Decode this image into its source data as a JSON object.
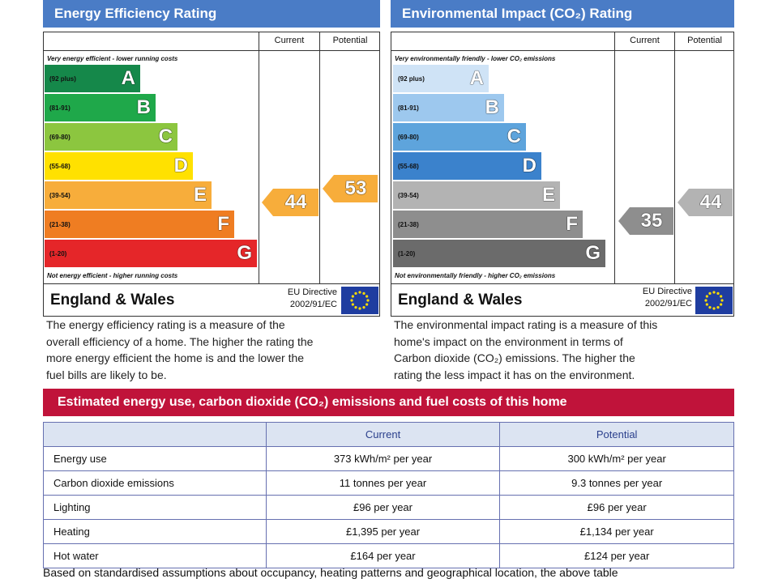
{
  "energy_panel": {
    "title": "Energy Efficiency Rating",
    "col_current": "Current",
    "col_potential": "Potential",
    "top_caption": "Very energy efficient - lower running costs",
    "bottom_caption": "Not energy efficient - higher running costs",
    "bands": [
      {
        "range": "(92 plus)",
        "letter": "A",
        "color": "#15884a"
      },
      {
        "range": "(81-91)",
        "letter": "B",
        "color": "#1fa84a"
      },
      {
        "range": "(69-80)",
        "letter": "C",
        "color": "#8cc63f"
      },
      {
        "range": "(55-68)",
        "letter": "D",
        "color": "#ffe100"
      },
      {
        "range": "(39-54)",
        "letter": "E",
        "color": "#f7ad3b"
      },
      {
        "range": "(21-38)",
        "letter": "F",
        "color": "#ef7d22"
      },
      {
        "range": "(1-20)",
        "letter": "G",
        "color": "#e52629"
      }
    ],
    "current": {
      "value": "44",
      "band": "E",
      "color": "#f7ad3b"
    },
    "potential": {
      "value": "53",
      "band": "E",
      "color": "#f7ad3b"
    },
    "region": "England & Wales",
    "directive_line1": "EU Directive",
    "directive_line2": "2002/91/EC",
    "description": [
      "The energy efficiency rating is a measure of the",
      "overall efficiency of a home. The higher the rating the",
      "more energy efficient the home is and the lower the",
      "fuel bills are likely to be."
    ]
  },
  "env_panel": {
    "title": "Environmental Impact (CO₂) Rating",
    "col_current": "Current",
    "col_potential": "Potential",
    "top_caption": "Very environmentally friendly - lower CO₂ emissions",
    "bottom_caption": "Not environmentally friendly - higher CO₂ emissions",
    "bands": [
      {
        "range": "(92 plus)",
        "letter": "A",
        "color": "#cfe3f6"
      },
      {
        "range": "(81-91)",
        "letter": "B",
        "color": "#9dc8ee"
      },
      {
        "range": "(69-80)",
        "letter": "C",
        "color": "#5ea4dc"
      },
      {
        "range": "(55-68)",
        "letter": "D",
        "color": "#3b82cc"
      },
      {
        "range": "(39-54)",
        "letter": "E",
        "color": "#b3b3b3"
      },
      {
        "range": "(21-38)",
        "letter": "F",
        "color": "#8e8e8e"
      },
      {
        "range": "(1-20)",
        "letter": "G",
        "color": "#6b6b6b"
      }
    ],
    "current": {
      "value": "35",
      "band": "F",
      "color": "#8e8e8e"
    },
    "potential": {
      "value": "44",
      "band": "E",
      "color": "#b3b3b3"
    },
    "region": "England & Wales",
    "directive_line1": "EU Directive",
    "directive_line2": "2002/91/EC",
    "description": [
      "The environmental impact rating is a measure of this",
      "home's impact on the environment in terms of",
      "Carbon dioxide (CO₂) emissions. The higher the",
      "rating the less impact it has on the environment."
    ]
  },
  "costs": {
    "banner": "Estimated energy use, carbon dioxide (CO₂) emissions and fuel costs of this home",
    "col_current": "Current",
    "col_potential": "Potential",
    "rows": [
      {
        "label": "Energy use",
        "current": "373 kWh/m² per year",
        "potential": "300 kWh/m² per year"
      },
      {
        "label": "Carbon dioxide emissions",
        "current": "11 tonnes per year",
        "potential": "9.3 tonnes per year"
      },
      {
        "label": "Lighting",
        "current": "£96 per year",
        "potential": "£96 per year"
      },
      {
        "label": "Heating",
        "current": "£1,395 per year",
        "potential": "£1,134 per year"
      },
      {
        "label": "Hot water",
        "current": "£164 per year",
        "potential": "£124 per year"
      }
    ],
    "footnote": "Based on standardised assumptions about occupancy, heating patterns and geographical location, the above table"
  }
}
